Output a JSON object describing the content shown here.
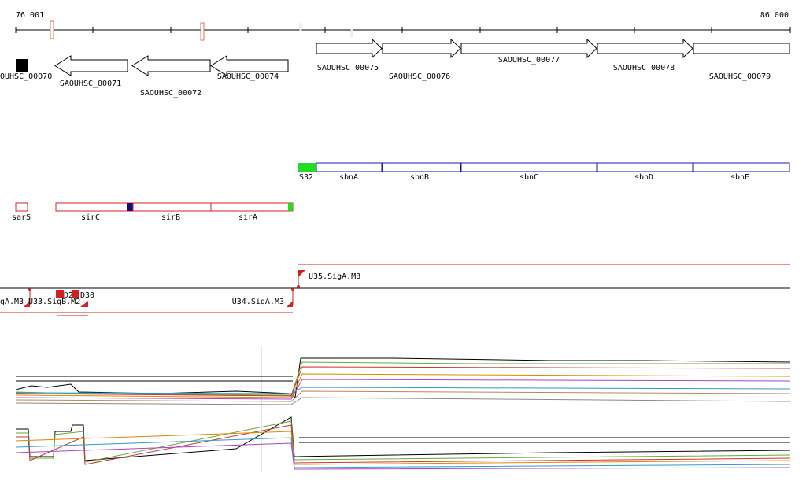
{
  "ruler": {
    "start": "76 001",
    "end": "86 000"
  },
  "genes": [
    "OUHSC_00070",
    "SAOUHSC_00071",
    "SAOUHSC_00072",
    "SAOUHSC_00074",
    "SAOUHSC_00075",
    "SAOUHSC_00076",
    "SAOUHSC_00077",
    "SAOUHSC_00078",
    "SAOUHSC_00079"
  ],
  "operon": [
    "S32",
    "sbnA",
    "sbnB",
    "sbnC",
    "sbnD",
    "sbnE"
  ],
  "regions": [
    "sarS",
    "sirC",
    "sirB",
    "sirA"
  ],
  "transcripts": [
    "U35.SigA.M3",
    "gA.M3",
    "U33.SigB.M2",
    "D2",
    "D30",
    "U34.SigA.M3"
  ]
}
